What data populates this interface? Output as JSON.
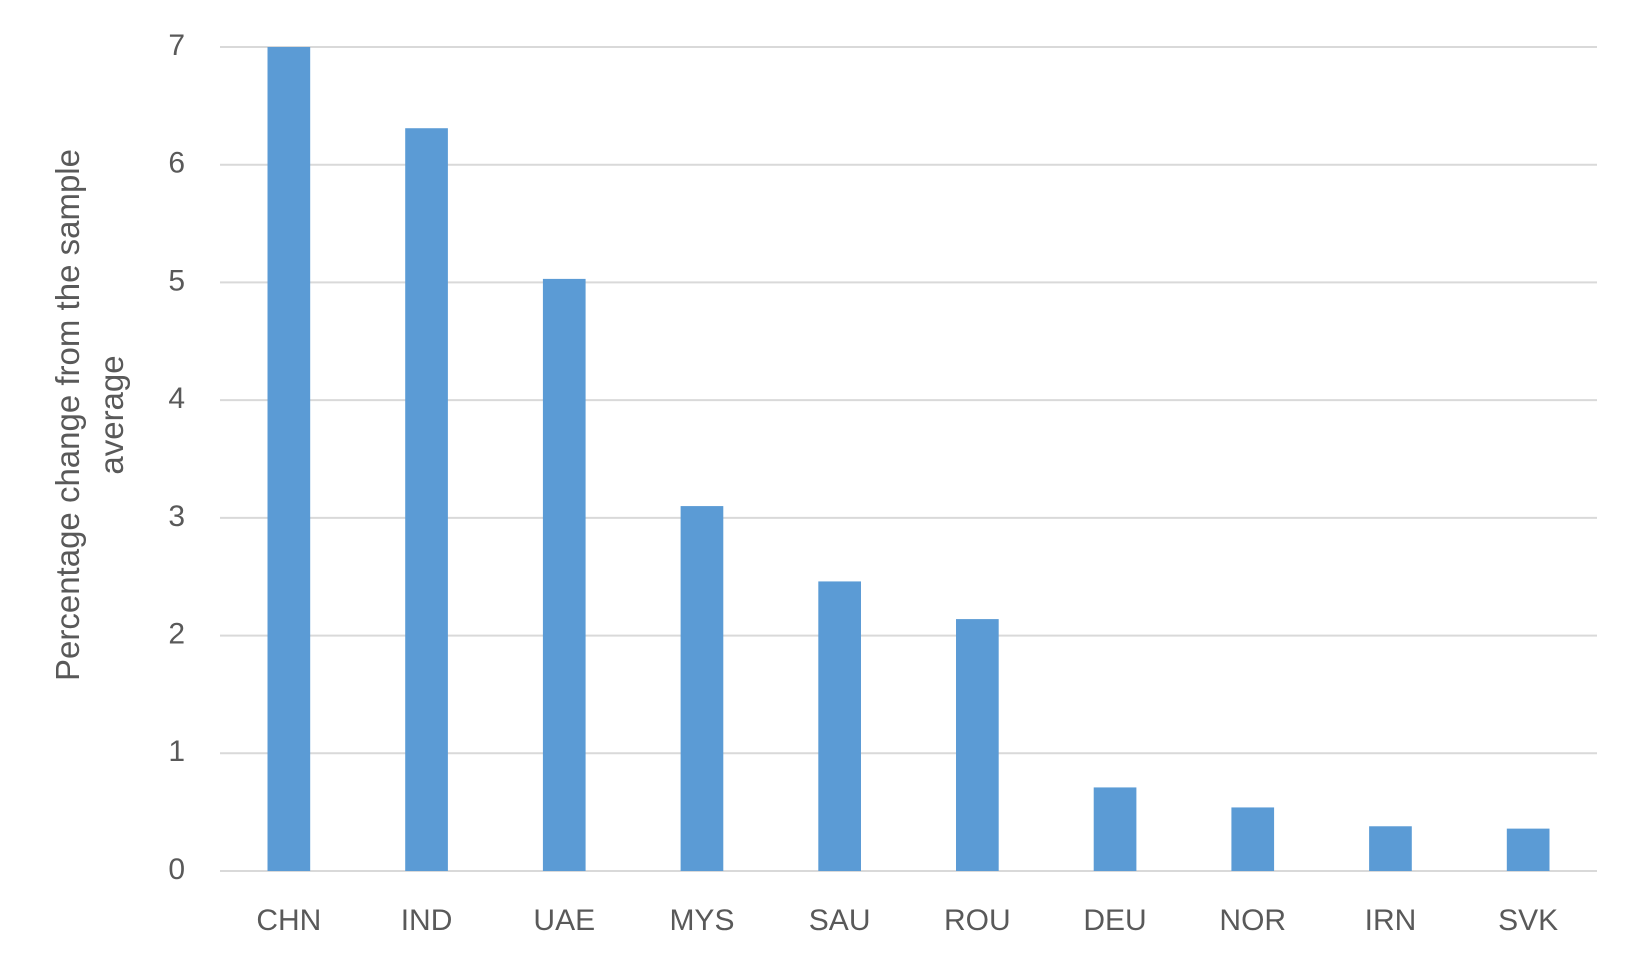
{
  "chart_data": {
    "type": "bar",
    "y_label": "Percentage change from the sample average",
    "categories": [
      "CHN",
      "IND",
      "UAE",
      "MYS",
      "SAU",
      "ROU",
      "DEU",
      "NOR",
      "IRN",
      "SVK"
    ],
    "values": [
      7.0,
      6.31,
      5.03,
      3.1,
      2.46,
      2.14,
      0.71,
      0.54,
      0.38,
      0.36
    ],
    "color": "#5b9bd5",
    "ylim": [
      0,
      7
    ],
    "yticks": [
      0,
      1,
      2,
      3,
      4,
      5,
      6,
      7
    ],
    "grid": true
  }
}
